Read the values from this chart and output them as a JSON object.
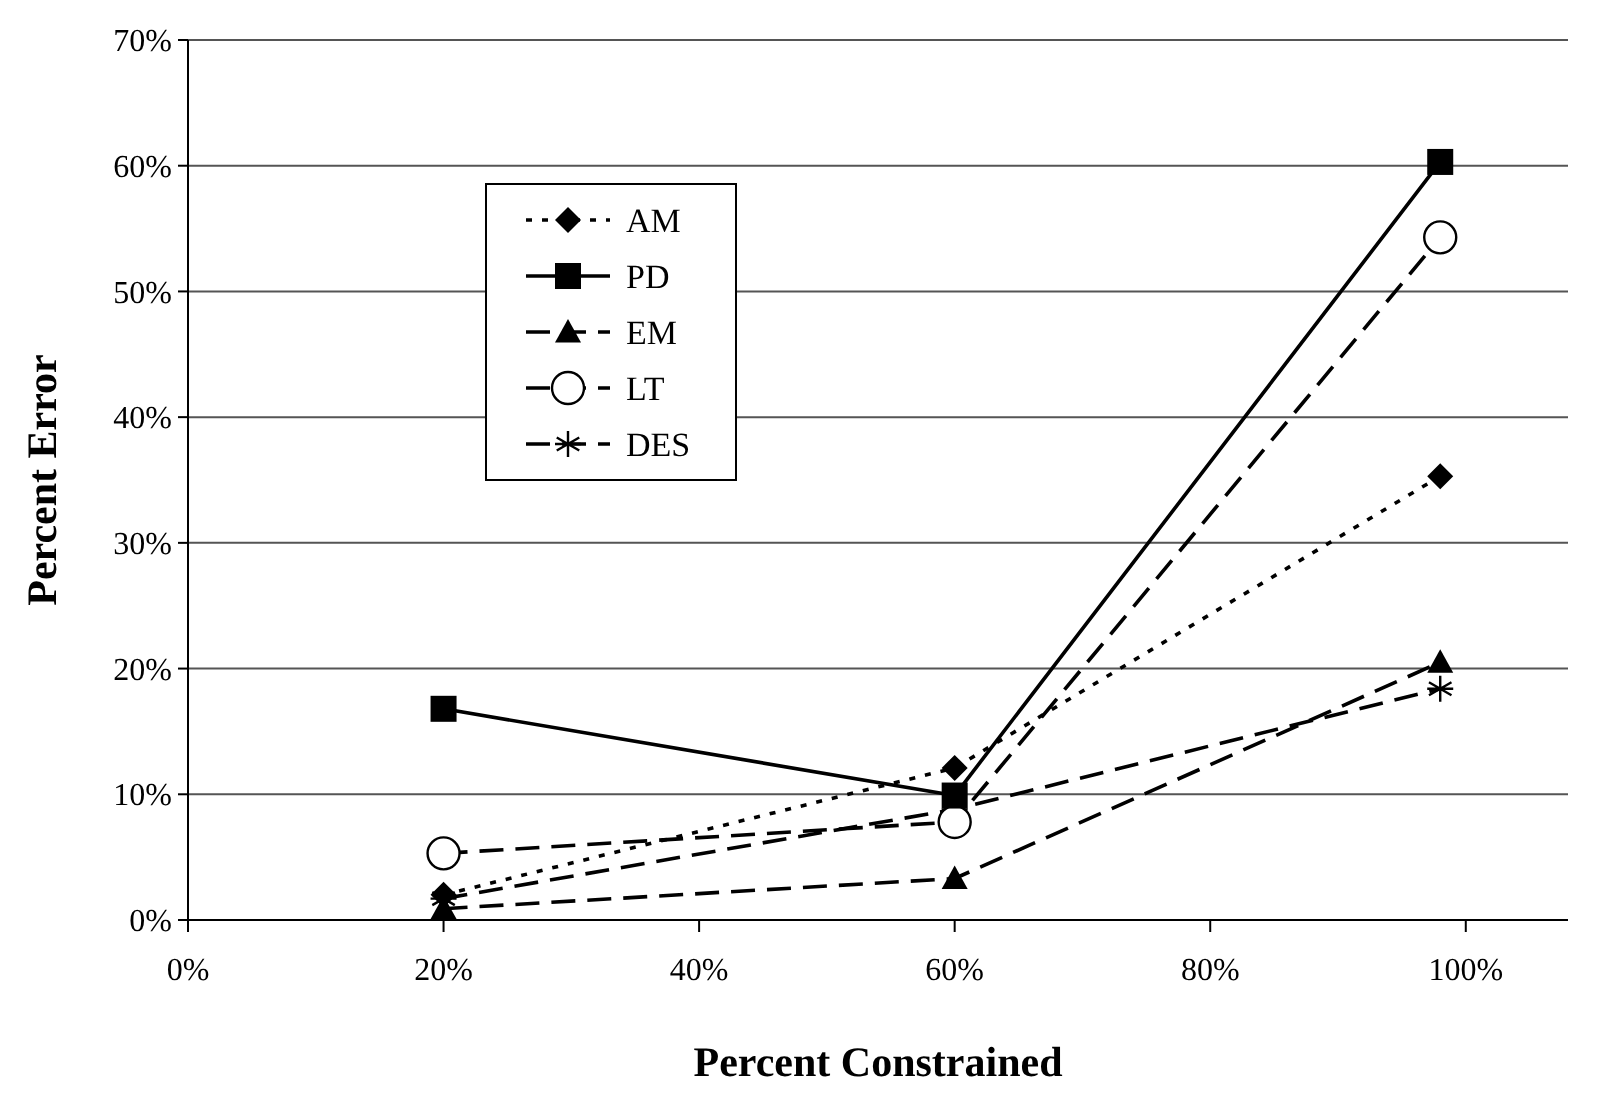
{
  "chart_data": {
    "type": "line",
    "xlabel": "Percent Constrained",
    "ylabel": "Percent Error",
    "x": [
      20,
      60,
      98
    ],
    "xlim": [
      0,
      108
    ],
    "xticks": [
      {
        "value": 0,
        "label": "0%"
      },
      {
        "value": 20,
        "label": "20%"
      },
      {
        "value": 40,
        "label": "40%"
      },
      {
        "value": 60,
        "label": "60%"
      },
      {
        "value": 80,
        "label": "80%"
      },
      {
        "value": 100,
        "label": "100%"
      }
    ],
    "ylim": [
      0,
      70
    ],
    "yticks": [
      {
        "value": 0,
        "label": "0%"
      },
      {
        "value": 10,
        "label": "10%"
      },
      {
        "value": 20,
        "label": "20%"
      },
      {
        "value": 30,
        "label": "30%"
      },
      {
        "value": 40,
        "label": "40%"
      },
      {
        "value": 50,
        "label": "50%"
      },
      {
        "value": 60,
        "label": "60%"
      },
      {
        "value": 70,
        "label": "70%"
      }
    ],
    "grid": "y",
    "legend": "top left",
    "series": [
      {
        "name": "AM",
        "color": "#000000",
        "marker": "diamond",
        "line_style": "dotted",
        "values": [
          2.0,
          12.1,
          35.3
        ]
      },
      {
        "name": "PD",
        "color": "#000000",
        "marker": "square",
        "line_style": "solid",
        "values": [
          16.8,
          9.9,
          60.3
        ]
      },
      {
        "name": "EM",
        "color": "#000000",
        "marker": "triangle",
        "line_style": "dashed",
        "values": [
          0.9,
          3.3,
          20.5
        ]
      },
      {
        "name": "LT",
        "color": "#000000",
        "marker": "circle",
        "line_style": "dashed",
        "values": [
          5.3,
          7.8,
          54.3
        ]
      },
      {
        "name": "DES",
        "color": "#000000",
        "marker": "cross",
        "line_style": "dashed",
        "values": [
          1.7,
          8.8,
          18.4
        ]
      }
    ]
  }
}
